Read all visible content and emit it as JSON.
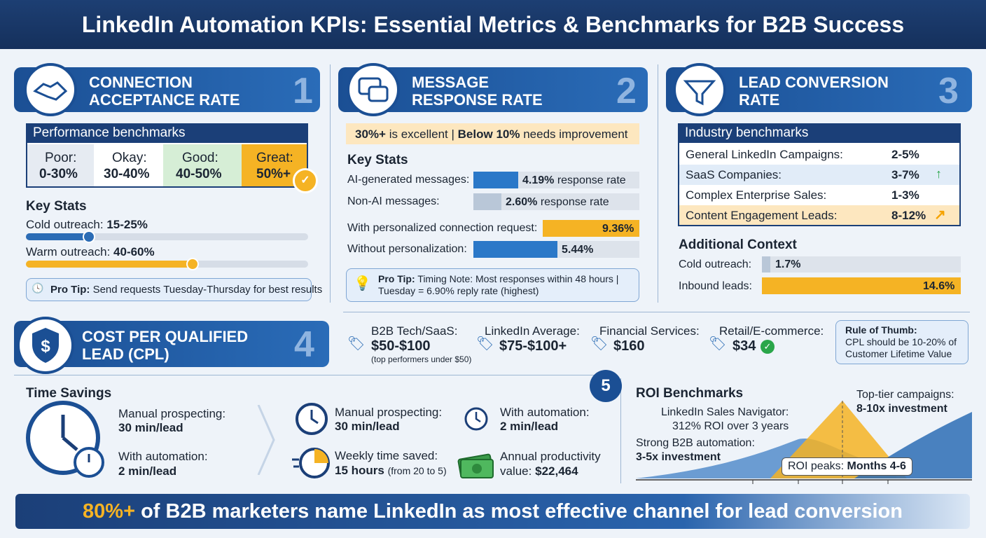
{
  "header": {
    "title": "LinkedIn Automation KPIs: Essential Metrics & Benchmarks for B2B Success"
  },
  "s1": {
    "number": "1",
    "title": [
      "CONNECTION",
      "ACCEPTANCE RATE"
    ],
    "benchmarks_title": "Performance benchmarks",
    "tiers": [
      {
        "label": "Poor:",
        "range": "0-30%"
      },
      {
        "label": "Okay:",
        "range": "30-40%"
      },
      {
        "label": "Good:",
        "range": "40-50%"
      },
      {
        "label": "Great:",
        "range": "50%+"
      }
    ],
    "key_stats_title": "Key Stats",
    "stats": [
      {
        "label": "Cold outreach:",
        "value": "15-25%"
      },
      {
        "label": "Warm outreach:",
        "value": "40-60%"
      }
    ],
    "tip_label": "Pro Tip:",
    "tip": "Send requests Tuesday-Thursday for best results"
  },
  "s2": {
    "number": "2",
    "title": [
      "MESSAGE",
      "RESPONSE RATE"
    ],
    "banner": [
      {
        "bold": "30%+",
        "text": "is excellent |"
      },
      {
        "bold": "Below 10%",
        "text": "needs improvement"
      }
    ],
    "key_stats_title": "Key Stats",
    "stats": [
      {
        "label": "AI-generated messages:",
        "value": "4.19%",
        "suffix": "response rate"
      },
      {
        "label": "Non-AI messages:",
        "value": "2.60%",
        "suffix": "response rate"
      },
      {
        "label": "With personalized connection request:",
        "value": "9.36%"
      },
      {
        "label": "Without personalization:",
        "value": "5.44%"
      }
    ],
    "tip_label": "Pro Tip:",
    "tip": [
      "Timing Note: Most responses within 48 hours |",
      "Tuesday = 6.90% reply rate (highest)"
    ]
  },
  "s3": {
    "number": "3",
    "title": [
      "LEAD CONVERSION",
      "RATE"
    ],
    "benchmarks_title": "Industry benchmarks",
    "rows": [
      {
        "label": "General LinkedIn Campaigns:",
        "value": "2-5%"
      },
      {
        "label": "SaaS Companies:",
        "value": "3-7%"
      },
      {
        "label": "Complex Enterprise Sales:",
        "value": "1-3%"
      },
      {
        "label": "Content Engagement Leads:",
        "value": "8-12%"
      }
    ],
    "context_title": "Additional Context",
    "context": [
      {
        "label": "Cold outreach:",
        "value": "1.7%"
      },
      {
        "label": "Inbound leads:",
        "value": "14.6%"
      }
    ]
  },
  "s4": {
    "number": "4",
    "title": [
      "COST PER QUALIFIED",
      "LEAD (CPL)"
    ],
    "items": [
      {
        "label": "B2B Tech/SaaS:",
        "value": "$50-$100",
        "note": "(top performers under $50)"
      },
      {
        "label": "LinkedIn Average:",
        "value": "$75-$100+"
      },
      {
        "label": "Financial Services:",
        "value": "$160"
      },
      {
        "label": "Retail/E-commerce:",
        "value": "$34"
      }
    ],
    "rule_title": "Rule of Thumb:",
    "rule": [
      "CPL should be 10-20% of",
      "Customer Lifetime Value"
    ]
  },
  "time_savings": {
    "title": "Time Savings",
    "manual": {
      "label": "Manual prospecting:",
      "value": "30 min/lead"
    },
    "automation": {
      "label": "With automation:",
      "value": "2 min/lead"
    },
    "details": [
      {
        "label": "Manual prospecting:",
        "value": "30 min/lead"
      },
      {
        "label": "With automation:",
        "value": "2 min/lead"
      },
      {
        "label": "Weekly time saved:",
        "value": "15 hours",
        "note": "(from 20 to 5)"
      },
      {
        "label": "Annual productivity",
        "label2": "value:",
        "value": "$22,464"
      }
    ]
  },
  "roi": {
    "number": "5",
    "title": "ROI Benchmarks",
    "annotations": [
      {
        "label": "LinkedIn Sales Navigator:",
        "value": "312% ROI over 3 years"
      },
      {
        "label": "Strong B2B automation:",
        "value": "3-5x investment"
      },
      {
        "label": "Top-tier campaigns:",
        "value": "8-10x investment"
      },
      {
        "label": "ROI peaks:",
        "value": "Months 4-6"
      }
    ]
  },
  "footer": {
    "highlight": "80%+",
    "text": "of B2B marketers name LinkedIn as most effective channel for lead conversion"
  }
}
